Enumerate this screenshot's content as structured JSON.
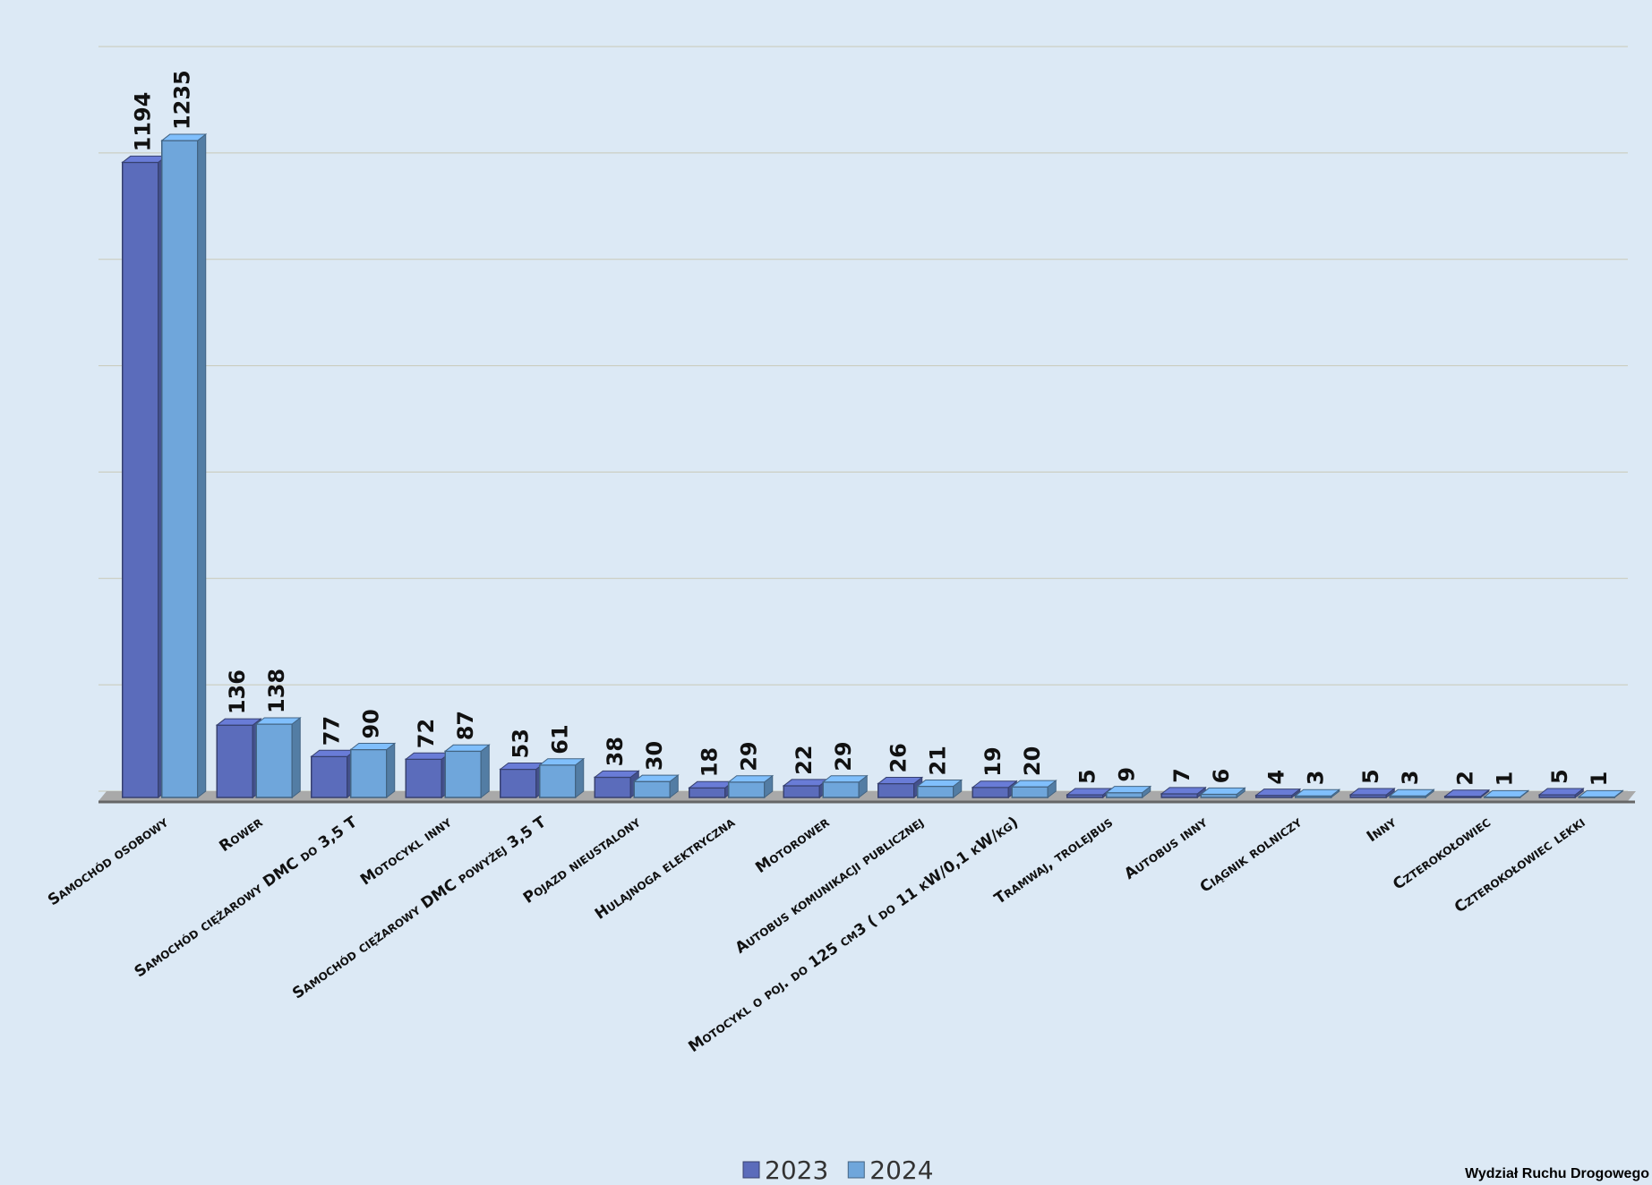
{
  "chart_data": {
    "type": "bar3d",
    "categories": [
      "Samochód osobowy",
      "Rower",
      "Samochód ciężarowy DMC do 3,5 T",
      "Motocykl inny",
      "Samochód ciężarowy DMC powyżej 3,5 T",
      "Pojazd nieustalony",
      "Hulajnoga elektryczna",
      "Motorower",
      "Autobus komunikacji publicznej",
      "Motocykl o poj. do 125 cm3 ( do 11 kW/0,1 kW/kg)",
      "Tramwaj, trolejbus",
      "Autobus inny",
      "Ciągnik rolniczy",
      "Inny",
      "Czterokołowiec",
      "Czterokołowiec lekki"
    ],
    "series": [
      {
        "name": "2023",
        "color": "#5b6cbb",
        "values": [
          1194,
          136,
          77,
          72,
          53,
          38,
          18,
          22,
          26,
          19,
          5,
          7,
          4,
          5,
          2,
          5
        ]
      },
      {
        "name": "2024",
        "color": "#6fa6db",
        "values": [
          1235,
          138,
          90,
          87,
          61,
          30,
          29,
          29,
          21,
          20,
          9,
          6,
          3,
          3,
          1,
          1
        ]
      }
    ],
    "ylim": [
      0,
      1400
    ],
    "yticks": [
      0,
      200,
      400,
      600,
      800,
      1000,
      1200,
      1400
    ],
    "grid": true,
    "legend": "bottom"
  },
  "footer": "Wydział Ruchu Drogowego"
}
